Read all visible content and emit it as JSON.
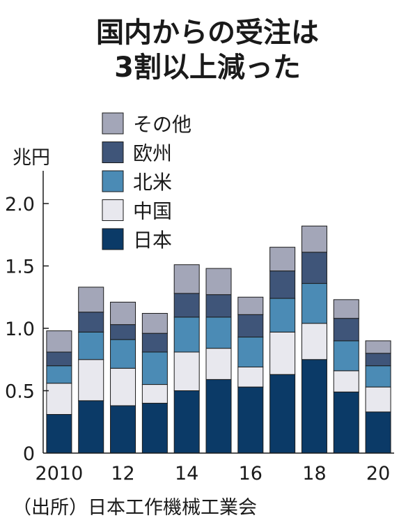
{
  "title_lines": [
    "国内からの受注は",
    "3割以上減った"
  ],
  "source": "（出所）日本工作機械工業会",
  "colors": {
    "日本": "#0b3a67",
    "中国": "#e8e8ee",
    "北米": "#4b8bb5",
    "欧州": "#3f5579",
    "その他": "#a3a6b8"
  },
  "chart_data": {
    "type": "bar",
    "stacked": true,
    "title": "国内からの受注は3割以上減った",
    "ylabel": "兆円",
    "ylim": [
      0,
      2.25
    ],
    "yticks": [
      "0",
      "0.5",
      "1.0",
      "1.5",
      "2.0"
    ],
    "ytick_values": [
      0,
      0.5,
      1.0,
      1.5,
      2.0
    ],
    "categories": [
      "2010",
      "11",
      "12",
      "13",
      "14",
      "15",
      "16",
      "17",
      "18",
      "19",
      "20"
    ],
    "xtick_labels": [
      "2010",
      "",
      "12",
      "",
      "14",
      "",
      "16",
      "",
      "18",
      "",
      "20"
    ],
    "legend_position": "top-left",
    "series": [
      {
        "name": "日本",
        "values": [
          0.31,
          0.42,
          0.38,
          0.4,
          0.5,
          0.59,
          0.53,
          0.63,
          0.75,
          0.49,
          0.33
        ]
      },
      {
        "name": "中国",
        "values": [
          0.25,
          0.33,
          0.3,
          0.15,
          0.31,
          0.25,
          0.16,
          0.34,
          0.29,
          0.17,
          0.2
        ]
      },
      {
        "name": "北米",
        "values": [
          0.14,
          0.22,
          0.23,
          0.26,
          0.28,
          0.25,
          0.24,
          0.27,
          0.32,
          0.24,
          0.17
        ]
      },
      {
        "name": "欧州",
        "values": [
          0.11,
          0.16,
          0.12,
          0.15,
          0.19,
          0.18,
          0.18,
          0.22,
          0.25,
          0.18,
          0.1
        ]
      },
      {
        "name": "その他",
        "values": [
          0.17,
          0.2,
          0.18,
          0.16,
          0.23,
          0.21,
          0.14,
          0.19,
          0.21,
          0.15,
          0.1
        ]
      }
    ],
    "legend_order": [
      "その他",
      "欧州",
      "北米",
      "中国",
      "日本"
    ]
  }
}
